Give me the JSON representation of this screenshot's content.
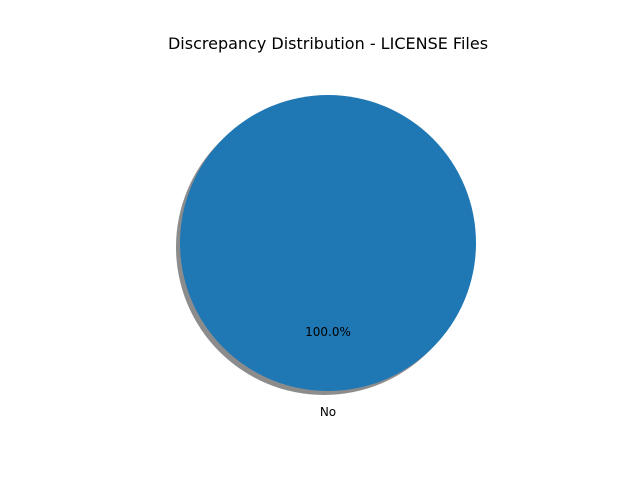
{
  "chart_data": {
    "type": "pie",
    "title": "Discrepancy Distribution - LICENSE Files",
    "slices": [
      {
        "label": "No",
        "value": 100.0,
        "percent_label": "100.0%",
        "color": "#1f77b4"
      }
    ],
    "shadow": true,
    "shadow_color": "#7f7f7f",
    "legend": "none"
  }
}
